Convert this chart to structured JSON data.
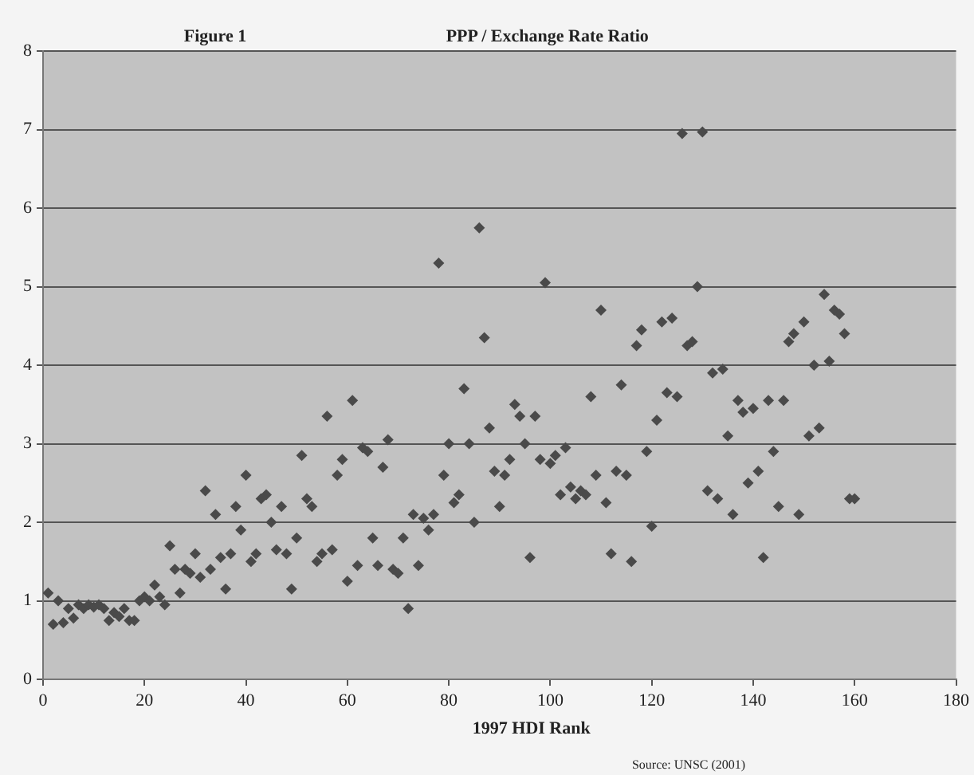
{
  "chart_data": {
    "type": "scatter",
    "title": "PPP / Exchange Rate Ratio",
    "xlabel": "1997 HDI Rank",
    "annotations": [
      "Figure 1",
      "Source: UNSC (2001)"
    ],
    "x": [
      1,
      2,
      3,
      4,
      5,
      6,
      7,
      8,
      9,
      10,
      11,
      12,
      13,
      14,
      15,
      16,
      17,
      18,
      19,
      20,
      21,
      22,
      23,
      24,
      25,
      26,
      27,
      28,
      29,
      30,
      31,
      32,
      33,
      34,
      35,
      36,
      37,
      38,
      39,
      40,
      41,
      42,
      43,
      44,
      45,
      46,
      47,
      48,
      49,
      50,
      51,
      52,
      53,
      54,
      55,
      56,
      57,
      58,
      59,
      60,
      61,
      62,
      63,
      64,
      65,
      66,
      67,
      68,
      69,
      70,
      71,
      72,
      73,
      74,
      75,
      76,
      77,
      78,
      79,
      80,
      81,
      82,
      83,
      84,
      85,
      86,
      87,
      88,
      89,
      90,
      91,
      92,
      93,
      94,
      95,
      96,
      97,
      98,
      99,
      100,
      101,
      102,
      103,
      104,
      105,
      106,
      107,
      108,
      109,
      110,
      111,
      112,
      113,
      114,
      115,
      116,
      117,
      118,
      119,
      120,
      121,
      122,
      123,
      124,
      125,
      126,
      127,
      128,
      129,
      130,
      131,
      132,
      133,
      134,
      135,
      136,
      137,
      138,
      139,
      140,
      141,
      142,
      143,
      144,
      145,
      146,
      147,
      148,
      149,
      150,
      151,
      152,
      153,
      154,
      155,
      156,
      157,
      158,
      159,
      160
    ],
    "series": [
      {
        "color": "#4a4a4a",
        "values": [
          1.1,
          0.7,
          1.0,
          0.72,
          0.9,
          0.78,
          0.95,
          0.9,
          0.95,
          0.92,
          0.95,
          0.9,
          0.75,
          0.85,
          0.8,
          0.9,
          0.75,
          0.75,
          1.0,
          1.05,
          1.0,
          1.2,
          1.05,
          0.95,
          1.7,
          1.4,
          1.1,
          1.4,
          1.35,
          1.6,
          1.3,
          2.4,
          1.4,
          2.1,
          1.55,
          1.15,
          1.6,
          2.2,
          1.9,
          2.6,
          1.5,
          1.6,
          2.3,
          2.35,
          2.0,
          1.65,
          2.2,
          1.6,
          1.15,
          1.8,
          2.85,
          2.3,
          2.2,
          1.5,
          1.6,
          3.35,
          1.65,
          2.6,
          2.8,
          1.25,
          3.55,
          1.45,
          2.95,
          2.9,
          1.8,
          1.45,
          2.7,
          3.05,
          1.4,
          1.35,
          1.8,
          0.9,
          2.1,
          1.45,
          2.05,
          1.9,
          2.1,
          5.3,
          2.6,
          3.0,
          2.25,
          2.35,
          3.7,
          3.0,
          2.0,
          5.75,
          4.35,
          3.2,
          2.65,
          2.2,
          2.6,
          2.8,
          3.5,
          3.35,
          3.0,
          1.55,
          3.35,
          2.8,
          5.05,
          2.75,
          2.85,
          2.35,
          2.95,
          2.45,
          2.3,
          2.4,
          2.35,
          3.6,
          2.6,
          4.7,
          2.25,
          1.6,
          2.65,
          3.75,
          2.6,
          1.5,
          4.25,
          4.45,
          2.9,
          1.95,
          3.3,
          4.55,
          3.65,
          4.6,
          3.6,
          6.95,
          4.25,
          4.3,
          5.0,
          6.97,
          2.4,
          3.9,
          2.3,
          3.95,
          3.1,
          2.1,
          3.55,
          3.4,
          2.5,
          3.45,
          2.65,
          1.55,
          3.55,
          2.9,
          2.2,
          3.55,
          4.3,
          4.4,
          2.1,
          4.55,
          3.1,
          4.0,
          3.2,
          4.9,
          4.05,
          4.7,
          4.65,
          4.4,
          2.3,
          2.3
        ]
      }
    ],
    "marker": "diamond",
    "grid": "y",
    "xlim": [
      0,
      180
    ],
    "xticks": [
      0,
      20,
      40,
      60,
      80,
      100,
      120,
      140,
      160,
      180
    ],
    "ylim": [
      0,
      8
    ],
    "yticks": [
      0,
      1,
      2,
      3,
      4,
      5,
      6,
      7,
      8
    ]
  }
}
